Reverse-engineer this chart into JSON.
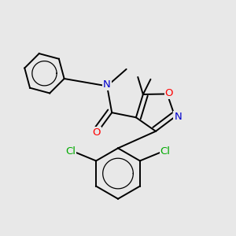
{
  "bg_color": "#e8e8e8",
  "atom_colors": {
    "C": "#000000",
    "N": "#0000cd",
    "O": "#ff0000",
    "Cl": "#00aa00"
  },
  "bond_color": "#000000",
  "label_font_size": 9.5,
  "small_font_size": 8.5
}
